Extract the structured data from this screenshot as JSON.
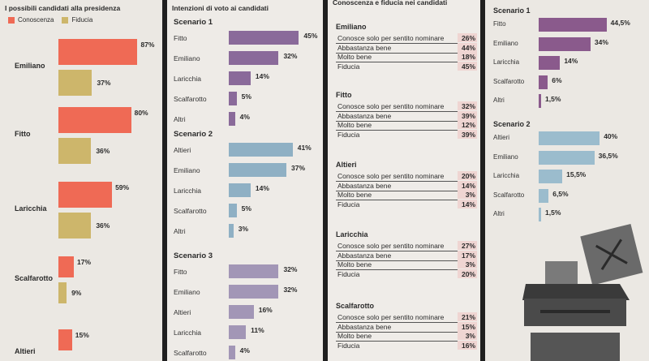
{
  "colors": {
    "conoscenza": "#ef6a55",
    "fiducia": "#cdb66b",
    "scenario1": "#8a6a9a",
    "scenario2": "#8fb0c4",
    "scenario3": "#a296b6",
    "s4_scenario1": "#8a5a8c",
    "s4_scenario2": "#9bbccd",
    "highlight": "#efd5d2"
  },
  "panel1": {
    "title": "I possibili candidati alla presidenza",
    "legend": {
      "conoscenza": "Conoscenza",
      "fiducia": "Fiducia"
    }
  },
  "panel2": {
    "title": "Intenzioni di voto ai candidati"
  },
  "panel3": {
    "title": "Conoscenza e fiducia nei candidati",
    "candidates": [
      {
        "name": "Emiliano",
        "rows": [
          {
            "label": "Conosce solo per sentito nominare",
            "value": "26%"
          },
          {
            "label": "Abbastanza bene",
            "value": "44%"
          },
          {
            "label": "Molto bene",
            "value": "18%"
          },
          {
            "label": "Fiducia",
            "value": "45%"
          }
        ]
      },
      {
        "name": "Fitto",
        "rows": [
          {
            "label": "Conosce solo per sentito nominare",
            "value": "32%"
          },
          {
            "label": "Abbastanza bene",
            "value": "39%"
          },
          {
            "label": "Molto bene",
            "value": "12%"
          },
          {
            "label": "Fiducia",
            "value": "39%"
          }
        ]
      },
      {
        "name": "Altieri",
        "rows": [
          {
            "label": "Conosce solo per sentito nominare",
            "value": "20%"
          },
          {
            "label": "Abbastanza bene",
            "value": "14%"
          },
          {
            "label": "Molto bene",
            "value": "3%"
          },
          {
            "label": "Fiducia",
            "value": "14%"
          }
        ]
      },
      {
        "name": "Laricchia",
        "rows": [
          {
            "label": "Conosce solo per sentito nominare",
            "value": "27%"
          },
          {
            "label": "Abbastanza bene",
            "value": "17%"
          },
          {
            "label": "Molto bene",
            "value": "3%"
          },
          {
            "label": "Fiducia",
            "value": "20%"
          }
        ]
      },
      {
        "name": "Scalfarotto",
        "rows": [
          {
            "label": "Conosce solo per sentito nominare",
            "value": "21%"
          },
          {
            "label": "Abbastanza bene",
            "value": "15%"
          },
          {
            "label": "Molto bene",
            "value": "3%"
          },
          {
            "label": "Fiducia",
            "value": "16%"
          }
        ]
      }
    ]
  },
  "chart_data": [
    {
      "type": "bar",
      "orientation": "horizontal",
      "title": "I possibili candidati alla presidenza",
      "categories": [
        "Emiliano",
        "Fitto",
        "Laricchia",
        "Scalfarotto",
        "Altieri"
      ],
      "series": [
        {
          "name": "Conoscenza",
          "values": [
            87,
            80,
            59,
            17,
            15
          ],
          "labels": [
            "87%",
            "80%",
            "59%",
            "17%",
            "15%"
          ]
        },
        {
          "name": "Fiducia",
          "values": [
            37,
            36,
            36,
            9,
            null
          ],
          "labels": [
            "37%",
            "36%",
            "36%",
            "9%",
            ""
          ]
        }
      ],
      "legend": "top-left",
      "xlim": [
        0,
        100
      ]
    },
    {
      "type": "bar",
      "orientation": "horizontal",
      "title": "Intenzioni di voto ai candidati",
      "groups": [
        {
          "name": "Scenario 1",
          "categories": [
            "Fitto",
            "Emiliano",
            "Laricchia",
            "Scalfarotto",
            "Altri"
          ],
          "values": [
            45,
            32,
            14,
            5,
            4
          ],
          "labels": [
            "45%",
            "32%",
            "14%",
            "5%",
            "4%"
          ]
        },
        {
          "name": "Scenario 2",
          "categories": [
            "Altieri",
            "Emiliano",
            "Laricchia",
            "Scalfarotto",
            "Altri"
          ],
          "values": [
            41,
            37,
            14,
            5,
            3
          ],
          "labels": [
            "41%",
            "37%",
            "14%",
            "5%",
            "3%"
          ]
        },
        {
          "name": "Scenario 3",
          "categories": [
            "Fitto",
            "Emiliano",
            "Altieri",
            "Laricchia",
            "Scalfarotto"
          ],
          "values": [
            32,
            32,
            16,
            11,
            4
          ],
          "labels": [
            "32%",
            "32%",
            "16%",
            "11%",
            "4%"
          ]
        }
      ],
      "xlim": [
        0,
        50
      ]
    },
    {
      "type": "bar",
      "orientation": "horizontal",
      "groups": [
        {
          "name": "Scenario 1",
          "categories": [
            "Fitto",
            "Emiliano",
            "Laricchia",
            "Scalfarotto",
            "Altri"
          ],
          "values": [
            44.5,
            34,
            14,
            6,
            1.5
          ],
          "labels": [
            "44,5%",
            "34%",
            "14%",
            "6%",
            "1,5%"
          ]
        },
        {
          "name": "Scenario 2",
          "categories": [
            "Altieri",
            "Emiliano",
            "Laricchia",
            "Scalfarotto",
            "Altri"
          ],
          "values": [
            40,
            36.5,
            15.5,
            6.5,
            1.5
          ],
          "labels": [
            "40%",
            "36,5%",
            "15,5%",
            "6,5%",
            "1,5%"
          ]
        }
      ],
      "xlim": [
        0,
        50
      ]
    }
  ]
}
